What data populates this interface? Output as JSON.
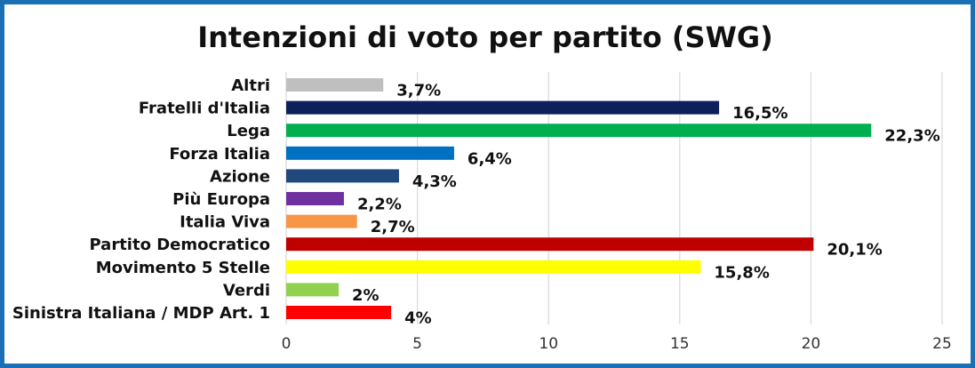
{
  "chart_data": {
    "type": "bar",
    "orientation": "horizontal",
    "title": "Intenzioni di voto per partito (SWG)",
    "xlabel": "",
    "ylabel": "",
    "xlim": [
      0,
      25
    ],
    "x_ticks": [
      0,
      5,
      10,
      15,
      20,
      25
    ],
    "x_tick_labels": [
      "0",
      "5",
      "10",
      "15",
      "20",
      "25"
    ],
    "grid": true,
    "legend": "none",
    "categories": [
      "Altri",
      "Fratelli d'Italia",
      "Lega",
      "Forza Italia",
      "Azione",
      "Più Europa",
      "Italia Viva",
      "Partito Democratico",
      "Movimento 5 Stelle",
      "Verdi",
      "Sinistra Italiana / MDP Art. 1"
    ],
    "values": [
      3.7,
      16.5,
      22.3,
      6.4,
      4.3,
      2.2,
      2.7,
      20.1,
      15.8,
      2,
      4
    ],
    "data_labels": [
      "3,7%",
      "16,5%",
      "22,3%",
      "6,4%",
      "4,3%",
      "2,2%",
      "2,7%",
      "20,1%",
      "15,8%",
      "2%",
      "4%"
    ],
    "colors": [
      "#bfbfbf",
      "#0d1f5c",
      "#00b050",
      "#0070c0",
      "#1f497d",
      "#7030a0",
      "#f79646",
      "#c00000",
      "#ffff00",
      "#92d050",
      "#ff0000"
    ]
  }
}
